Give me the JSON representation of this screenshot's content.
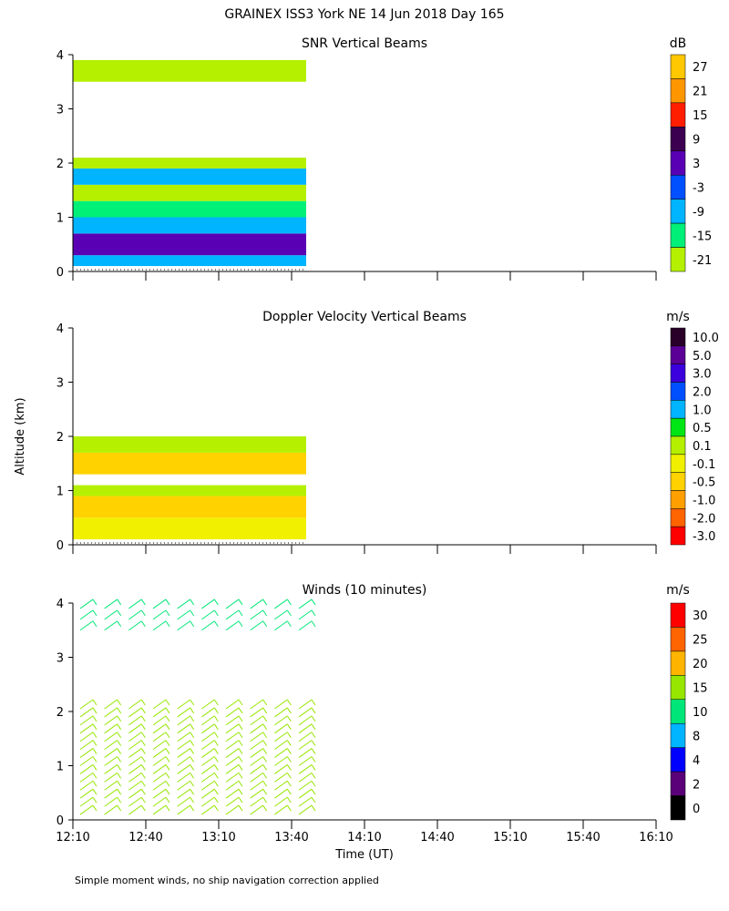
{
  "header": {
    "title": "GRAINEX ISS3 York NE  14 Jun 2018 Day 165"
  },
  "footer": {
    "note": "Simple moment winds, no ship navigation correction applied"
  },
  "chart_data": [
    {
      "type": "heatmap",
      "title": "SNR Vertical Beams",
      "ylabel": "",
      "ylim": [
        0,
        4
      ],
      "yticks": [
        "0",
        "1",
        "2",
        "3",
        "4"
      ],
      "colorbar": {
        "unit": "dB",
        "labels": [
          "27",
          "21",
          "15",
          "9",
          "3",
          "-3",
          "-9",
          "-15",
          "-21"
        ],
        "colors": [
          "#ffc800",
          "#ff9600",
          "#ff1e00",
          "#3c0050",
          "#5a00b4",
          "#0050ff",
          "#00b4ff",
          "#00f078",
          "#b4f000"
        ]
      },
      "data_extent": {
        "time_start": "12:10",
        "time_end": "13:46"
      },
      "layers": [
        {
          "alt_min": 0.1,
          "alt_max": 0.3,
          "color": "#00b4ff"
        },
        {
          "alt_min": 0.3,
          "alt_max": 0.7,
          "color": "#5a00b4"
        },
        {
          "alt_min": 0.7,
          "alt_max": 1.0,
          "color": "#00b4ff"
        },
        {
          "alt_min": 1.0,
          "alt_max": 1.3,
          "color": "#00f078"
        },
        {
          "alt_min": 1.3,
          "alt_max": 1.6,
          "color": "#b4f000"
        },
        {
          "alt_min": 1.6,
          "alt_max": 1.9,
          "color": "#00b4ff"
        },
        {
          "alt_min": 1.9,
          "alt_max": 2.1,
          "color": "#b4f000"
        },
        {
          "alt_min": 3.5,
          "alt_max": 3.9,
          "color": "#b4f000"
        }
      ]
    },
    {
      "type": "heatmap",
      "title": "Doppler Velocity Vertical Beams",
      "ylabel": "Altitude (km)",
      "ylim": [
        0,
        4
      ],
      "yticks": [
        "0",
        "1",
        "2",
        "3",
        "4"
      ],
      "colorbar": {
        "unit": "m/s",
        "labels": [
          "10.0",
          "5.0",
          "3.0",
          "2.0",
          "1.0",
          "0.5",
          "0.1",
          "-0.1",
          "-0.5",
          "-1.0",
          "-2.0",
          "-3.0"
        ],
        "colors": [
          "#280028",
          "#5a0096",
          "#3c00dc",
          "#0050ff",
          "#00b4ff",
          "#00e614",
          "#b4f000",
          "#f0f000",
          "#ffd200",
          "#ffa000",
          "#ff6400",
          "#ff0000"
        ]
      },
      "data_extent": {
        "time_start": "12:10",
        "time_end": "13:46"
      },
      "layers": [
        {
          "alt_min": 0.1,
          "alt_max": 0.5,
          "color": "#f0f000"
        },
        {
          "alt_min": 0.5,
          "alt_max": 0.9,
          "color": "#ffd200"
        },
        {
          "alt_min": 0.9,
          "alt_max": 1.1,
          "color": "#b4f000"
        },
        {
          "alt_min": 1.3,
          "alt_max": 1.7,
          "color": "#ffd200"
        },
        {
          "alt_min": 1.7,
          "alt_max": 2.0,
          "color": "#b4f000"
        }
      ]
    },
    {
      "type": "scatter",
      "title": "Winds (10 minutes)",
      "ylabel": "",
      "ylim": [
        0,
        4
      ],
      "yticks": [
        "0",
        "1",
        "2",
        "3",
        "4"
      ],
      "xlabel": "Time (UT)",
      "xticks": [
        "12:10",
        "12:40",
        "13:10",
        "13:40",
        "14:10",
        "14:40",
        "15:10",
        "15:40",
        "16:10"
      ],
      "colorbar": {
        "unit": "m/s",
        "labels": [
          "30",
          "25",
          "20",
          "15",
          "10",
          "8",
          "4",
          "2",
          "0"
        ],
        "colors": [
          "#ff0000",
          "#ff6400",
          "#ffb400",
          "#96e600",
          "#00e678",
          "#00b4ff",
          "#0000ff",
          "#5a0078",
          "#000000"
        ]
      },
      "profile_times": [
        "12:10",
        "12:20",
        "12:30",
        "12:40",
        "12:50",
        "13:00",
        "13:10",
        "13:20",
        "13:30",
        "13:40"
      ],
      "barb_altitudes_km": [
        0.1,
        0.25,
        0.4,
        0.55,
        0.7,
        0.85,
        1.0,
        1.15,
        1.3,
        1.45,
        1.6,
        1.75,
        1.9,
        2.05,
        3.5,
        3.7,
        3.9
      ],
      "speed_color_default": "15"
    }
  ]
}
